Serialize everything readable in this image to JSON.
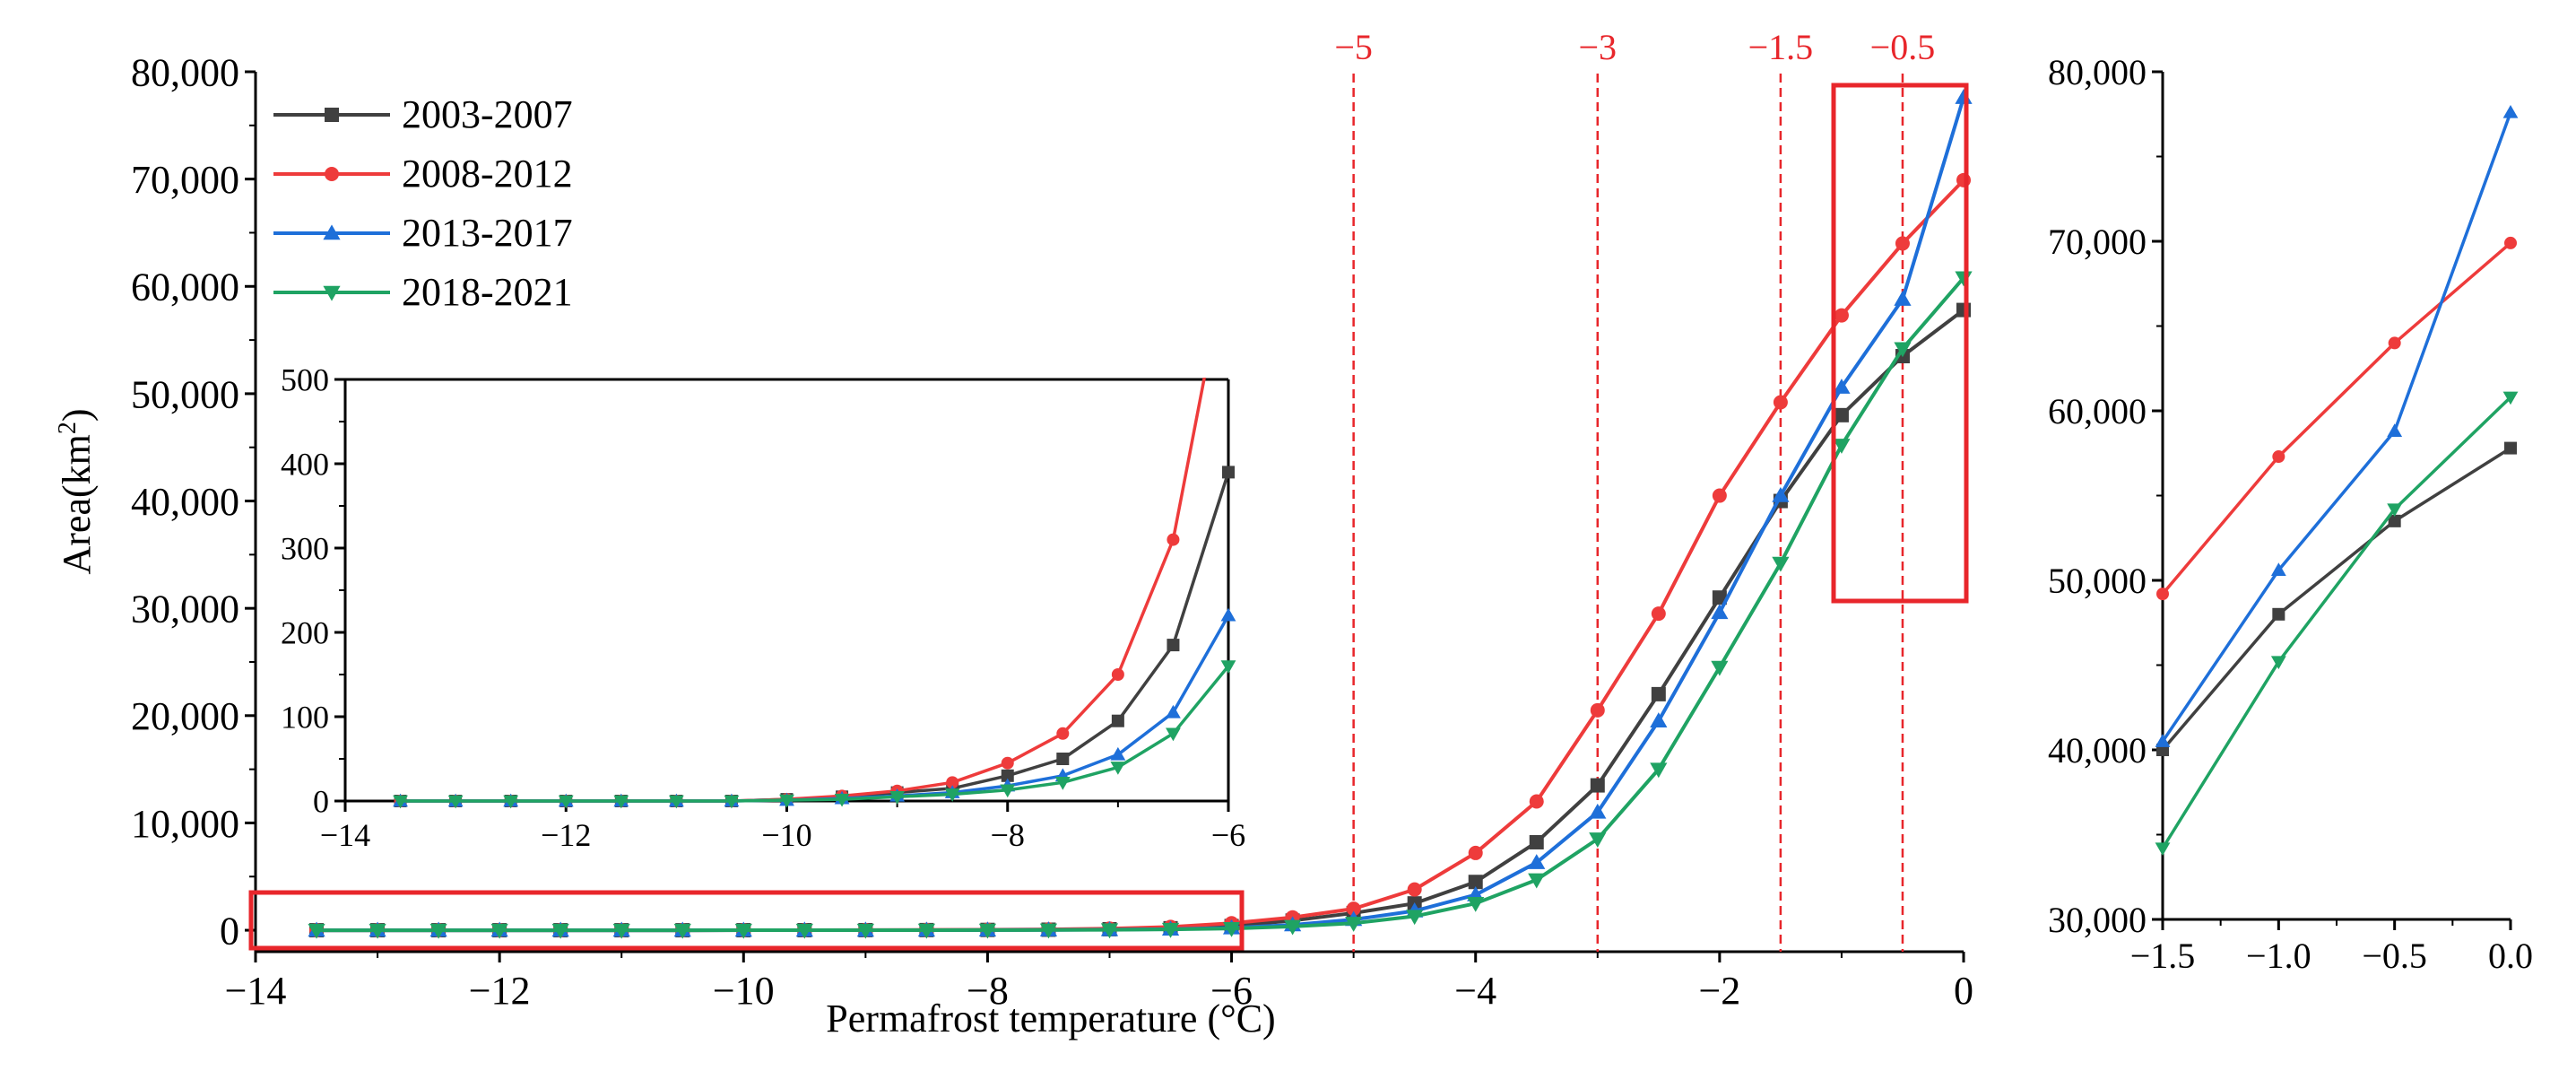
{
  "chart_data": [
    {
      "id": "main",
      "type": "line",
      "xlabel": "Permafrost temperature (°C)",
      "ylabel_main": "Area(km",
      "ylabel_sup": "2",
      "ylabel_close": ")",
      "xlim": [
        -14,
        0
      ],
      "ylim": [
        -2000,
        80000
      ],
      "xticks": [
        -14,
        -12,
        -10,
        -8,
        -6,
        -4,
        -2,
        0
      ],
      "xtick_labels": [
        "−14",
        "−12",
        "−10",
        "−8",
        "−6",
        "−4",
        "−2",
        "0"
      ],
      "yticks": [
        0,
        10000,
        20000,
        30000,
        40000,
        50000,
        60000,
        70000,
        80000
      ],
      "ytick_labels": [
        "0",
        "10,000",
        "20,000",
        "30,000",
        "40,000",
        "50,000",
        "60,000",
        "70,000",
        "80,000"
      ],
      "x": [
        -13.5,
        -13,
        -12.5,
        -12,
        -11.5,
        -11,
        -10.5,
        -10,
        -9.5,
        -9,
        -8.5,
        -8,
        -7.5,
        -7,
        -6.5,
        -6,
        -5.5,
        -5,
        -4.5,
        -4,
        -3.5,
        -3,
        -2.5,
        -2,
        -1.5,
        -1,
        -0.5,
        0
      ],
      "series": [
        {
          "name": "2003-2007",
          "color": "#404040",
          "marker": "square",
          "values": [
            0,
            0,
            0,
            0,
            0,
            0,
            0,
            2,
            5,
            10,
            15,
            30,
            50,
            95,
            185,
            390,
            900,
            1600,
            2500,
            4500,
            8200,
            13500,
            22000,
            31000,
            40000,
            48000,
            53500,
            57800
          ]
        },
        {
          "name": "2008-2012",
          "color": "#ee3b3b",
          "marker": "circle",
          "values": [
            0,
            0,
            0,
            0,
            0,
            0,
            0,
            2,
            6,
            12,
            22,
            45,
            80,
            150,
            310,
            650,
            1200,
            2000,
            3800,
            7200,
            12000,
            20500,
            29500,
            40500,
            49200,
            57300,
            64000,
            69900
          ]
        },
        {
          "name": "2013-2017",
          "color": "#1e6fd9",
          "marker": "triangle-up",
          "values": [
            0,
            0,
            0,
            0,
            0,
            0,
            0,
            1,
            3,
            6,
            10,
            18,
            30,
            55,
            105,
            220,
            500,
            1000,
            1800,
            3300,
            6300,
            11000,
            19500,
            29600,
            40500,
            50600,
            58800,
            77600
          ]
        },
        {
          "name": "2018-2021",
          "color": "#1fa363",
          "marker": "triangle-down",
          "values": [
            0,
            0,
            0,
            0,
            0,
            0,
            0,
            1,
            2,
            5,
            8,
            13,
            22,
            40,
            80,
            160,
            350,
            650,
            1300,
            2500,
            4700,
            8500,
            15000,
            24500,
            34200,
            45200,
            54200,
            60800
          ]
        }
      ],
      "vlines": [
        {
          "x": -5,
          "label": "−5"
        },
        {
          "x": -3,
          "label": "−3"
        },
        {
          "x": -1.5,
          "label": "−1.5"
        },
        {
          "x": -0.5,
          "label": "−0.5"
        }
      ],
      "vline_color": "#e8262b",
      "legend_position": "top-left"
    },
    {
      "id": "inset",
      "type": "line",
      "xlim": [
        -14,
        -6
      ],
      "ylim": [
        0,
        500
      ],
      "xticks": [
        -14,
        -12,
        -10,
        -8,
        -6
      ],
      "xtick_labels": [
        "−14",
        "−12",
        "−10",
        "−8",
        "−6"
      ],
      "yticks": [
        0,
        100,
        200,
        300,
        400,
        500
      ],
      "ytick_labels": [
        "0",
        "100",
        "200",
        "300",
        "400",
        "500"
      ],
      "x_range_shown": [
        -13.5,
        -6
      ]
    },
    {
      "id": "zoom",
      "type": "line",
      "xlim": [
        -1.5,
        0
      ],
      "ylim": [
        30000,
        80000
      ],
      "xticks": [
        -1.5,
        -1.0,
        -0.5,
        0.0
      ],
      "xtick_labels": [
        "−1.5",
        "−1.0",
        "−0.5",
        "0.0"
      ],
      "yticks": [
        30000,
        40000,
        50000,
        60000,
        70000,
        80000
      ],
      "ytick_labels": [
        "30,000",
        "40,000",
        "50,000",
        "60,000",
        "70,000",
        "80,000"
      ],
      "x_range_shown": [
        -1.5,
        0
      ]
    }
  ],
  "highlight_color": "#e8262b"
}
